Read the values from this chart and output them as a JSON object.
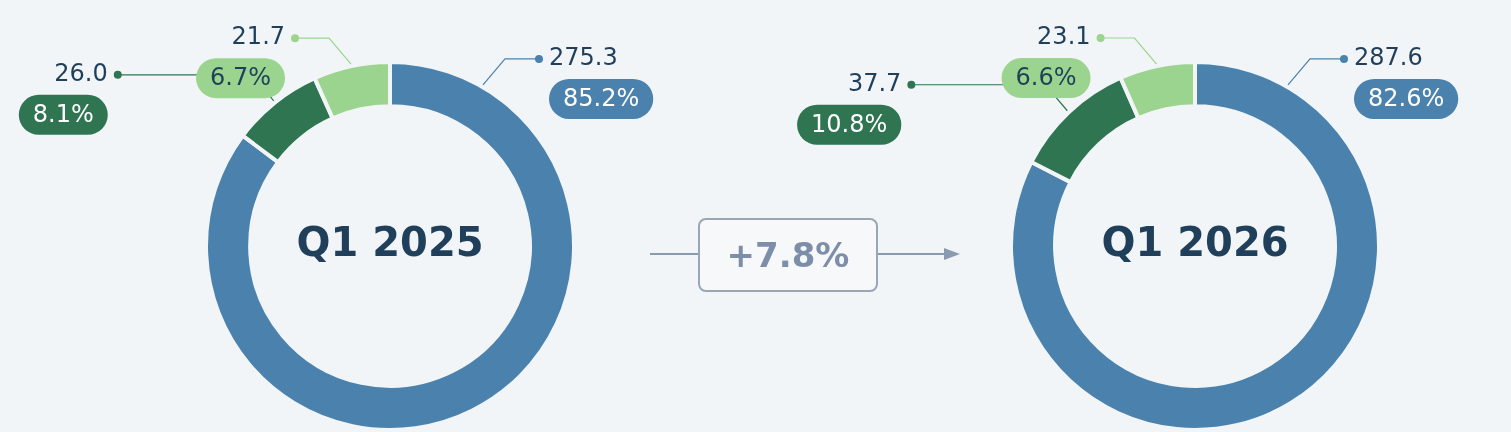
{
  "chart_data": [
    {
      "type": "donut",
      "title": "Q1 2025",
      "categories": [
        null,
        null,
        null
      ],
      "values": [
        275.3,
        26.0,
        21.7
      ],
      "value_labels": [
        "275.3",
        "26.0",
        "21.7"
      ],
      "colors": [
        "#4a82ad",
        "#2f7552",
        "#9bd48f"
      ],
      "annotations": [
        "85.2%",
        "8.1%",
        "6.7%"
      ],
      "legend": false
    },
    {
      "type": "other",
      "annotations": [
        "+7.8%"
      ]
    },
    {
      "type": "donut",
      "title": "Q1 2026",
      "categories": [
        null,
        null,
        null
      ],
      "values": [
        287.6,
        37.7,
        23.1
      ],
      "value_labels": [
        "287.6",
        "37.7",
        "23.1"
      ],
      "colors": [
        "#4a82ad",
        "#2f7552",
        "#9bd48f"
      ],
      "annotations": [
        "82.6%",
        "10.8%",
        "6.6%"
      ],
      "legend": false
    }
  ]
}
